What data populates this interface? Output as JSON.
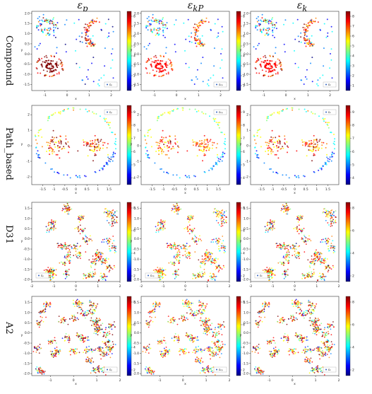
{
  "columns": [
    {
      "base": "ε",
      "sub": "p"
    },
    {
      "base": "ε",
      "sub": "kP"
    },
    {
      "base": "ε",
      "sub": "k"
    }
  ],
  "rows": [
    "Compound",
    "Path_based",
    "D31",
    "A2"
  ],
  "chart_data": [
    {
      "row": "Compound",
      "type": "scatter",
      "xlabel": "x",
      "ylabel": "y",
      "xlim": [
        -1.6,
        2.4
      ],
      "ylim": [
        -1.8,
        2.1
      ],
      "xticks": [
        -1,
        0,
        1,
        2
      ],
      "yticks": [
        -1.5,
        -1.0,
        -0.5,
        0.0,
        0.5,
        1.0,
        1.5,
        2.0
      ],
      "cbar_ticks": [
        1,
        2,
        3,
        4,
        5,
        6,
        7,
        8
      ]
    },
    {
      "row": "Path_based",
      "type": "scatter",
      "xlabel": "x",
      "ylabel": "y",
      "xlim": [
        -2.0,
        2.0
      ],
      "ylim": [
        -2.5,
        2.6
      ],
      "xticks": [
        -1.5,
        -1.0,
        -0.5,
        0.0,
        0.5,
        1.0,
        1.5
      ],
      "yticks": [
        -2,
        -1,
        0,
        1,
        2
      ],
      "cbar_ticks": [
        4,
        5,
        6,
        7,
        8,
        9
      ]
    },
    {
      "row": "D31",
      "type": "scatter",
      "xlabel": "x",
      "ylabel": "y",
      "xlim": [
        -2.0,
        2.0
      ],
      "ylim": [
        -2.1,
        1.8
      ],
      "xticks": [
        -2,
        -1,
        0,
        1,
        2
      ],
      "yticks": [
        -2.0,
        -1.5,
        -1.0,
        -0.5,
        0.0,
        0.5,
        1.0,
        1.5
      ],
      "cbar_ticks": [
        2,
        4,
        6,
        8
      ]
    },
    {
      "row": "A2",
      "type": "scatter",
      "xlabel": "x",
      "ylabel": "y",
      "xlim": [
        -1.8,
        2.0
      ],
      "ylim": [
        -2.1,
        1.8
      ],
      "xticks": [
        -1,
        0,
        1,
        2
      ],
      "yticks": [
        -2.0,
        -1.5,
        -1.0,
        -0.5,
        0.0,
        0.5,
        1.0,
        1.5
      ],
      "cbar_ticks": [
        2,
        4,
        6,
        8
      ]
    }
  ],
  "legend_labels": [
    "εₚ",
    "εₖₚ",
    "εₖ"
  ],
  "colormap": [
    "#00007f",
    "#0000ff",
    "#007fff",
    "#00ffff",
    "#7fff7f",
    "#ffff00",
    "#ff7f00",
    "#ff0000",
    "#7f0000"
  ]
}
